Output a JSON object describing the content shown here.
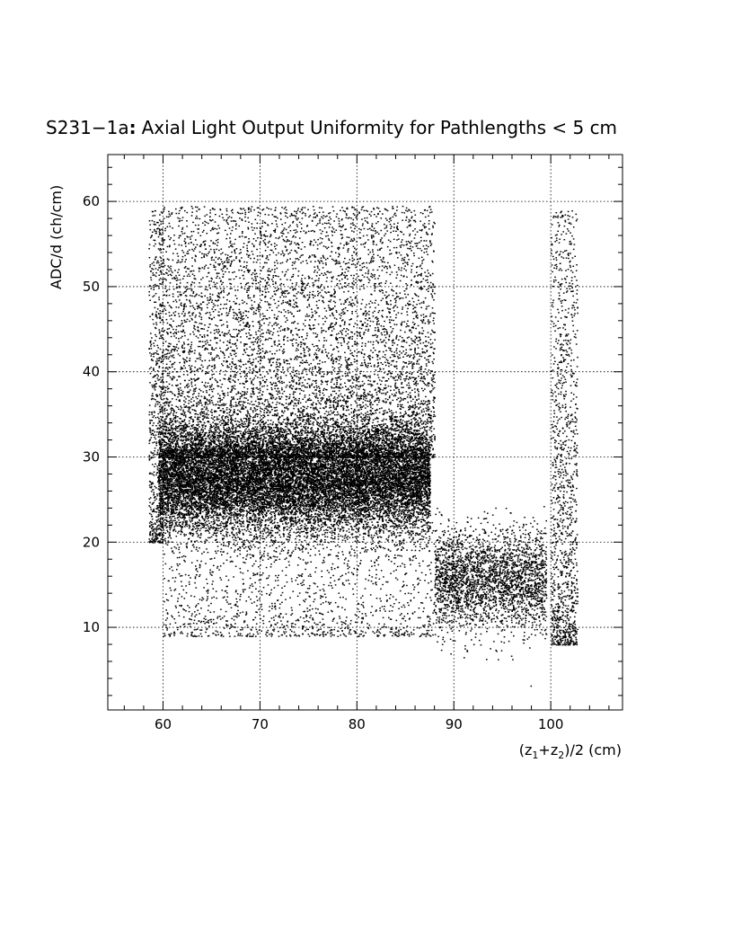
{
  "chart_data": {
    "type": "scatter",
    "title_prefix": "S231−1a",
    "title_colon": ":",
    "title_text": "Axial Light Output Uniformity for Pathlengths < 5 cm",
    "xlabel": {
      "open": "(z",
      "sub1": "1",
      "plus": "+z",
      "sub2": "2",
      "close": ")/2 (cm)"
    },
    "ylabel": "ADC/d (ch/cm)",
    "xlim": [
      54.3,
      107.4
    ],
    "ylim": [
      0.3,
      65.5
    ],
    "x_ticks": [
      60,
      70,
      80,
      90,
      100
    ],
    "y_ticks": [
      10,
      20,
      30,
      40,
      50,
      60
    ],
    "grid": true,
    "point_color": "#000000",
    "point_size_data_units": 0.15,
    "num_points_approx": 30000,
    "distribution": [
      {
        "name": "core band",
        "x_range": [
          59.5,
          87.5
        ],
        "y_center": 27.5,
        "y_spread": 3.2,
        "weight": 0.55
      },
      {
        "name": "upper tail",
        "x_range": [
          59.5,
          88
        ],
        "y_range": [
          30,
          59.5
        ],
        "weight": 0.25
      },
      {
        "name": "lower tail",
        "x_range": [
          60,
          88
        ],
        "y_range": [
          9,
          25
        ],
        "weight": 0.05
      },
      {
        "name": "falloff region",
        "x_range": [
          88,
          99.5
        ],
        "y_center": 15.5,
        "y_spread": 3,
        "weight": 0.09
      },
      {
        "name": "edge strip",
        "x_range": [
          100,
          102.7
        ],
        "y_range": [
          8,
          59
        ],
        "weight": 0.04
      },
      {
        "name": "left edge",
        "x_range": [
          58.5,
          60
        ],
        "y_range": [
          20,
          59
        ],
        "weight": 0.02
      }
    ]
  }
}
